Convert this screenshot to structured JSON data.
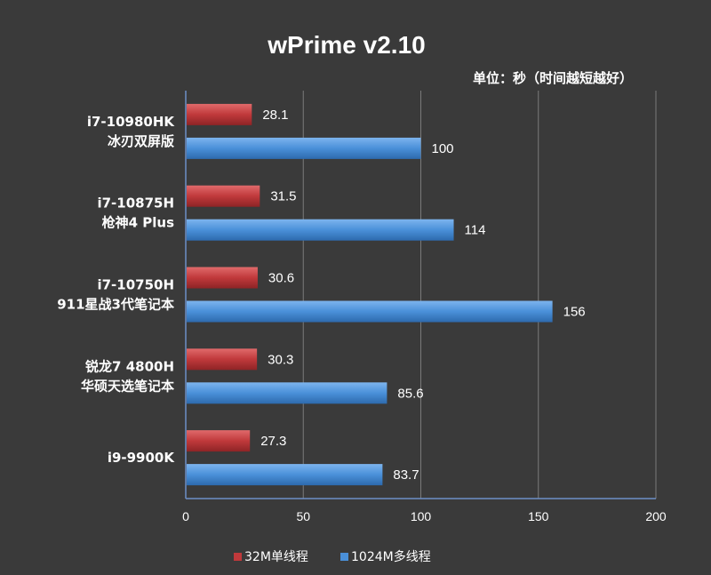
{
  "chart_data": {
    "type": "bar",
    "orientation": "horizontal",
    "title": "wPrime v2.10",
    "subtitle": "单位：秒（时间越短越好）",
    "categories": [
      [
        "i7-10980HK",
        "冰刃双屏版"
      ],
      [
        "i7-10875H",
        "枪神4 Plus"
      ],
      [
        "i7-10750H",
        "911星战3代笔记本"
      ],
      [
        "锐龙7 4800H",
        "华硕天选笔记本"
      ],
      [
        "i9-9900K"
      ]
    ],
    "series": [
      {
        "name": "32M单线程",
        "values": [
          28.1,
          31.5,
          30.6,
          30.3,
          27.3
        ],
        "color": "#c0393b"
      },
      {
        "name": "1024M多线程",
        "values": [
          100,
          114,
          156,
          85.6,
          83.7
        ],
        "color": "#4a90d9"
      }
    ],
    "xlim": [
      0,
      200
    ],
    "xticks": [
      0,
      50,
      100,
      150,
      200
    ],
    "grid": true,
    "legend_position": "bottom"
  }
}
